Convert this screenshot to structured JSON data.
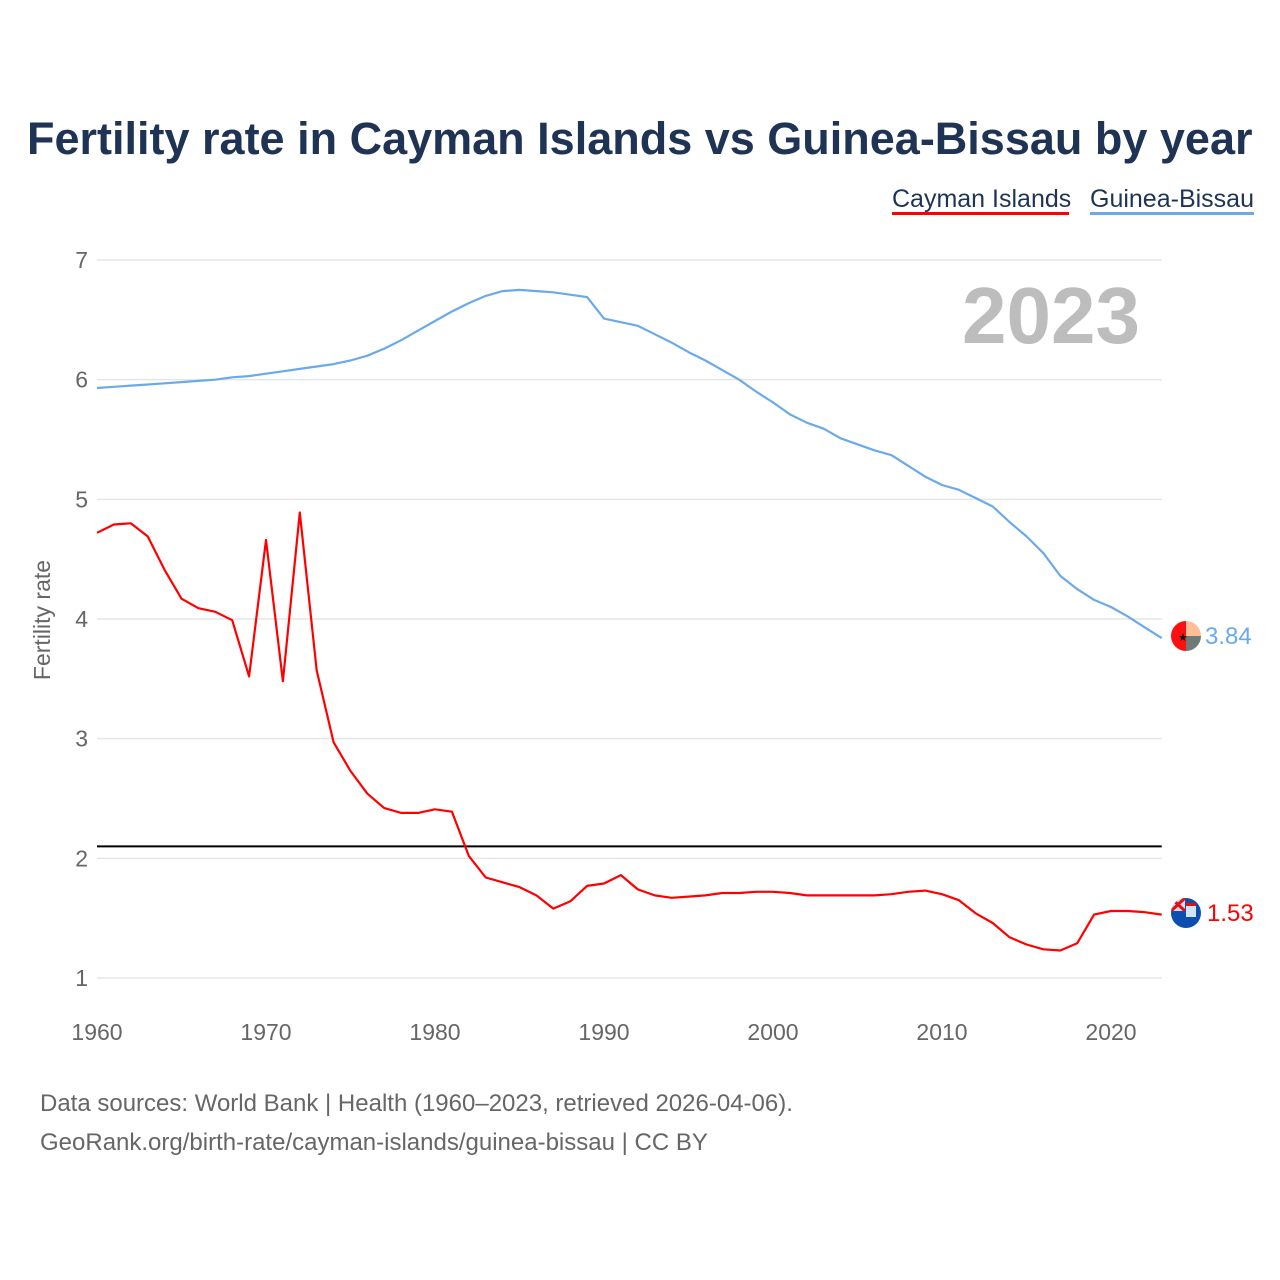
{
  "chart_data": {
    "type": "line",
    "title": "Fertility rate in Cayman Islands vs Guinea-Bissau by year",
    "xlabel": "",
    "ylabel": "Fertility rate",
    "xlim": [
      1960,
      2023
    ],
    "ylim": [
      1,
      7
    ],
    "x_ticks": [
      1960,
      1970,
      1980,
      1990,
      2000,
      2010,
      2020
    ],
    "y_ticks": [
      1,
      2,
      3,
      4,
      5,
      6,
      7
    ],
    "grid": true,
    "legend_position": "top-right",
    "current_year_label": "2023",
    "reference_line": {
      "value": 2.1,
      "color": "#000000"
    },
    "x": [
      1960,
      1961,
      1962,
      1963,
      1964,
      1965,
      1966,
      1967,
      1968,
      1969,
      1970,
      1971,
      1972,
      1973,
      1974,
      1975,
      1976,
      1977,
      1978,
      1979,
      1980,
      1981,
      1982,
      1983,
      1984,
      1985,
      1986,
      1987,
      1988,
      1989,
      1990,
      1991,
      1992,
      1993,
      1994,
      1995,
      1996,
      1997,
      1998,
      1999,
      2000,
      2001,
      2002,
      2003,
      2004,
      2005,
      2006,
      2007,
      2008,
      2009,
      2010,
      2011,
      2012,
      2013,
      2014,
      2015,
      2016,
      2017,
      2018,
      2019,
      2020,
      2021,
      2022,
      2023
    ],
    "series": [
      {
        "name": "Cayman Islands",
        "color": "#ff0000",
        "end_label": "1.53",
        "flag": "cayman-islands-flag",
        "values": [
          4.72,
          4.79,
          4.8,
          4.69,
          4.41,
          4.17,
          4.09,
          4.06,
          3.99,
          3.52,
          4.66,
          3.48,
          4.89,
          3.57,
          2.97,
          2.73,
          2.54,
          2.42,
          2.38,
          2.38,
          2.41,
          2.39,
          2.02,
          1.84,
          1.8,
          1.76,
          1.69,
          1.58,
          1.64,
          1.77,
          1.79,
          1.86,
          1.74,
          1.69,
          1.67,
          1.68,
          1.69,
          1.71,
          1.71,
          1.72,
          1.72,
          1.71,
          1.69,
          1.69,
          1.69,
          1.69,
          1.69,
          1.7,
          1.72,
          1.73,
          1.7,
          1.65,
          1.54,
          1.46,
          1.34,
          1.28,
          1.24,
          1.23,
          1.29,
          1.53,
          1.56,
          1.56,
          1.55,
          1.53
        ]
      },
      {
        "name": "Guinea-Bissau",
        "color": "#6aaaea",
        "end_label": "3.84",
        "flag": "guinea-bissau-flag",
        "values": [
          5.93,
          5.94,
          5.95,
          5.96,
          5.97,
          5.98,
          5.99,
          6.0,
          6.02,
          6.03,
          6.05,
          6.07,
          6.09,
          6.11,
          6.13,
          6.16,
          6.2,
          6.26,
          6.33,
          6.41,
          6.49,
          6.57,
          6.64,
          6.7,
          6.74,
          6.75,
          6.74,
          6.73,
          6.71,
          6.69,
          6.51,
          6.48,
          6.45,
          6.38,
          6.31,
          6.23,
          6.16,
          6.08,
          6.0,
          5.9,
          5.81,
          5.71,
          5.64,
          5.59,
          5.51,
          5.46,
          5.41,
          5.37,
          5.28,
          5.19,
          5.12,
          5.08,
          5.01,
          4.94,
          4.81,
          4.69,
          4.55,
          4.36,
          4.25,
          4.16,
          4.1,
          4.02,
          3.93,
          3.84
        ]
      }
    ]
  },
  "footer": {
    "line1": "Data sources: World Bank | Health (1960–2023, retrieved 2026-04-06).",
    "line2": "GeoRank.org/birth-rate/cayman-islands/guinea-bissau | CC BY"
  }
}
